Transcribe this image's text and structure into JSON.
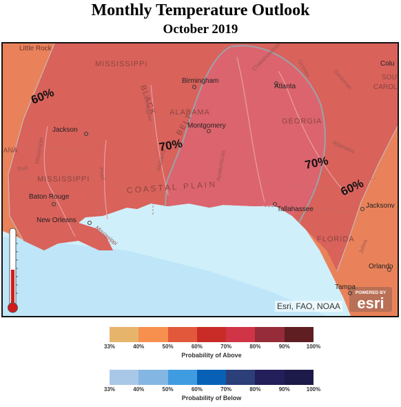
{
  "title": "Monthly Temperature Outlook",
  "subtitle": "October 2019",
  "map": {
    "attribution": "Esri, FAO, NOAA",
    "esri_logo": {
      "top": "POWERED BY",
      "word": "esri"
    },
    "contour_labels": [
      "60%",
      "70%",
      "70%",
      "60%"
    ],
    "places": {
      "little_rock": "Little Rock",
      "mississippi_n": "MISSISSIPPI",
      "black": "BLACK",
      "belt": "BELT",
      "birmingham": "Birmingham",
      "atlanta": "Atlanta",
      "columbia": "Colu",
      "south": "SOUT",
      "carolina": "CAROL",
      "alabama": "ALABAMA",
      "montgomery": "Montgomery",
      "georgia": "GEORGIA",
      "jackson": "Jackson",
      "louisiana": "IANA",
      "mississippi_s": "MISSISSIPPI",
      "coastal_plain": "C O A S T A L   P L A I N",
      "baton_rouge": "Baton Rouge",
      "new_orleans": "New Orleans",
      "tallahassee": "Tallahassee",
      "jacksonville": "Jacksonv",
      "florida": "FLORIDA",
      "orlando": "Orlando",
      "tampa": "Tampa",
      "savannah": "Savannah",
      "chattahoochee": "Chattahoochee",
      "oconee": "Oconee",
      "altamaha": "Altamaha",
      "tombigbee": "Tombigbee",
      "alabama_river": "Alabama",
      "pearl": "Pearl",
      "mississippi_river": "Mississippi",
      "red": "Red",
      "apalachicola": "Apalachicola",
      "johns": "Johns"
    },
    "colors": {
      "water": "#cfeffb",
      "prob_60_fill": "#d8605c",
      "prob_70_fill": "#dc6470",
      "land_outside": "#e9825a",
      "contour_line": "#9aa3aa"
    }
  },
  "legend_above": {
    "title": "Probability of Above",
    "colors": [
      "#e6b46b",
      "#f7904f",
      "#e1593a",
      "#c92b26",
      "#d03447",
      "#962b39",
      "#5e1e22"
    ],
    "ticks": [
      "33%",
      "40%",
      "50%",
      "60%",
      "70%",
      "80%",
      "90%",
      "100%"
    ]
  },
  "legend_below": {
    "title": "Probability of Below",
    "colors": [
      "#a9c8e8",
      "#84b6e3",
      "#3f9ce0",
      "#0861b6",
      "#2c3f78",
      "#231f5a",
      "#1b1a48"
    ],
    "ticks": [
      "33%",
      "40%",
      "50%",
      "60%",
      "70%",
      "80%",
      "90%",
      "100%"
    ]
  }
}
